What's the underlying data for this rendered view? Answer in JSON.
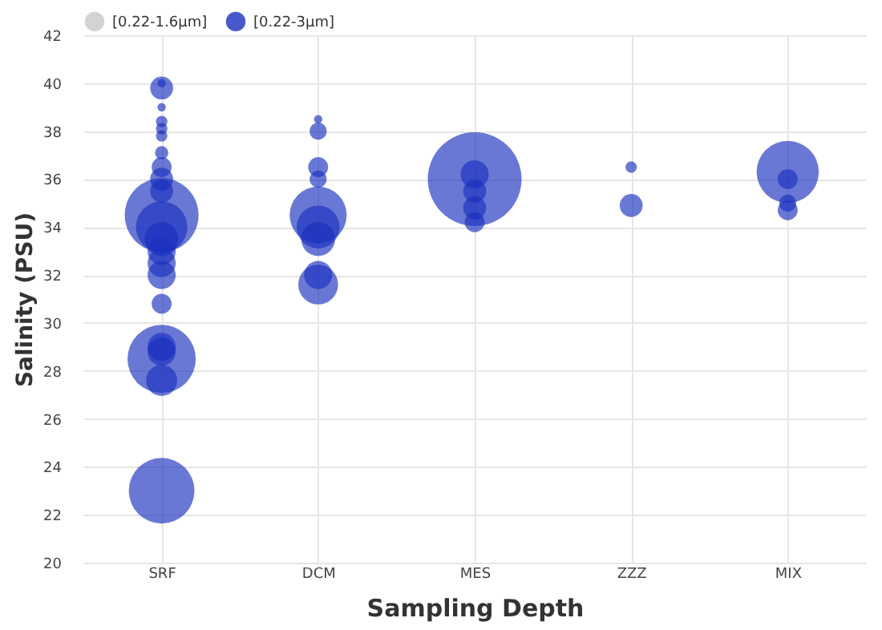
{
  "chart_data": {
    "type": "bubble",
    "xlabel": "Sampling Depth",
    "ylabel": "Salinity (PSU)",
    "categories": [
      "SRF",
      "DCM",
      "MES",
      "ZZZ",
      "MIX"
    ],
    "ylim": [
      20,
      42
    ],
    "yticks": [
      20,
      22,
      24,
      26,
      28,
      30,
      32,
      34,
      36,
      38,
      40,
      42
    ],
    "grid": true,
    "legend": "top left",
    "series": [
      {
        "name": "[0.22-1.6μm]",
        "color": "#c8c8c8",
        "values": [
          null,
          null,
          null,
          null,
          null
        ]
      },
      {
        "name": "[0.22-3μm]",
        "color": "#1a2fbf",
        "x": [
          "SRF",
          "SRF",
          "SRF",
          "SRF",
          "SRF",
          "SRF",
          "SRF",
          "SRF",
          "SRF",
          "SRF",
          "SRF",
          "SRF",
          "SRF",
          "SRF",
          "SRF",
          "SRF",
          "SRF",
          "SRF",
          "SRF",
          "SRF",
          "SRF",
          "SRF",
          "DCM",
          "DCM",
          "DCM",
          "DCM",
          "DCM",
          "DCM",
          "DCM",
          "DCM",
          "DCM",
          "MES",
          "MES",
          "MES",
          "MES",
          "MES",
          "ZZZ",
          "ZZZ",
          "MIX",
          "MIX",
          "MIX",
          "MIX"
        ],
        "values": [
          39.8,
          40.0,
          39.0,
          38.4,
          38.1,
          37.8,
          37.1,
          36.5,
          36.0,
          35.5,
          34.5,
          34.0,
          33.5,
          33.0,
          32.5,
          32.0,
          30.8,
          28.5,
          29.0,
          28.8,
          27.6,
          23.0,
          38.5,
          38.0,
          36.5,
          36.0,
          34.5,
          34.0,
          33.5,
          32.0,
          31.6,
          36.0,
          36.2,
          35.5,
          34.8,
          34.2,
          36.5,
          34.9,
          36.3,
          36.0,
          35.0,
          34.7
        ],
        "sizes": [
          0.06,
          0.008,
          0.008,
          0.015,
          0.015,
          0.015,
          0.02,
          0.045,
          0.06,
          0.06,
          0.62,
          0.3,
          0.13,
          0.09,
          0.09,
          0.09,
          0.045,
          0.53,
          0.09,
          0.09,
          0.11,
          0.49,
          0.008,
          0.033,
          0.045,
          0.033,
          0.37,
          0.21,
          0.13,
          0.09,
          0.18,
          1,
          0.09,
          0.06,
          0.06,
          0.045,
          0.015,
          0.06,
          0.44,
          0.045,
          0.033,
          0.045
        ]
      }
    ]
  }
}
